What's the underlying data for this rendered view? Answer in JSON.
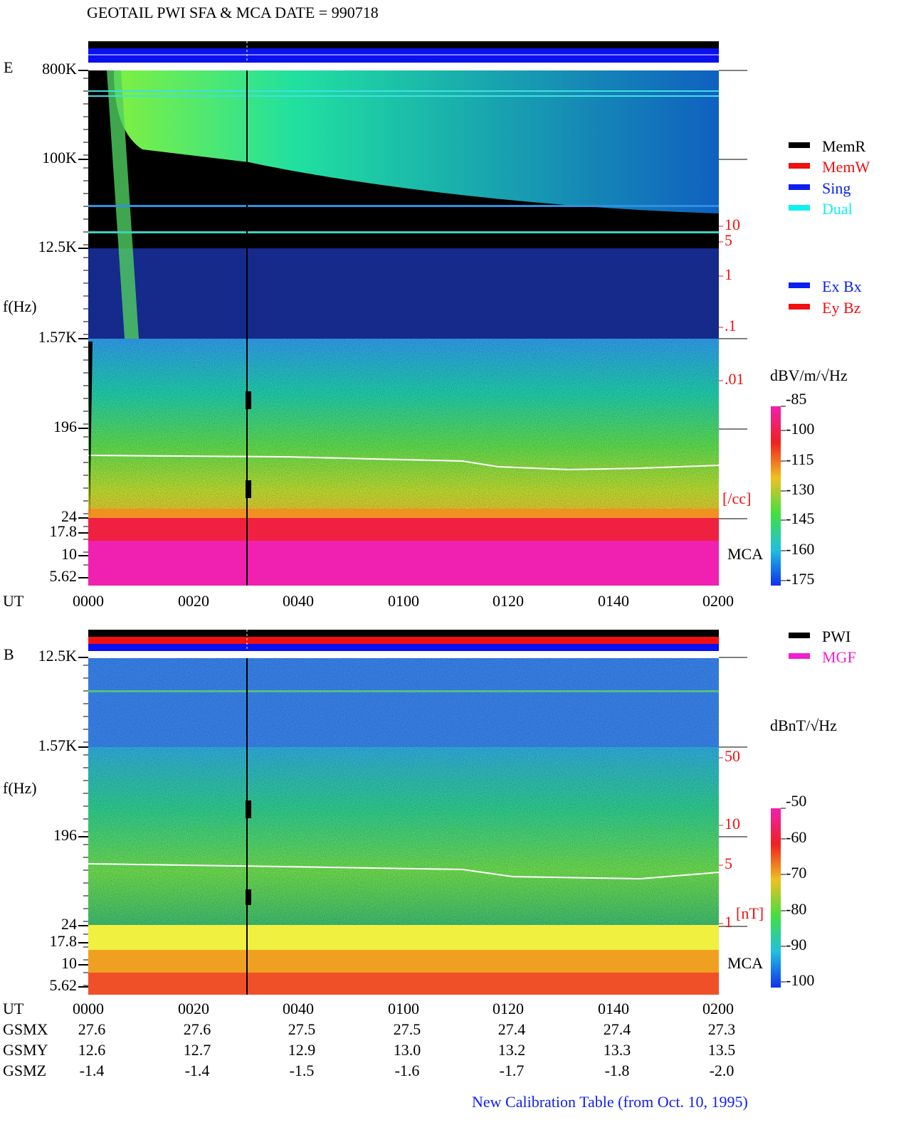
{
  "header": {
    "title": "GEOTAIL   PWI SFA & MCA   DATE = 990718"
  },
  "panel_e": {
    "label": "E",
    "y_axis_label": "f(Hz)",
    "y_ticks": [
      "800K",
      "100K",
      "12.5K",
      "1.57K",
      "196",
      "24",
      "17.8",
      "10",
      "5.62"
    ],
    "x_axis_label": "UT",
    "x_ticks": [
      "0000",
      "0020",
      "0040",
      "0100",
      "0120",
      "0140",
      "0200"
    ],
    "density_ticks": [
      "10",
      "5",
      "1",
      ".1",
      ".01"
    ],
    "density_unit": "[/cc]",
    "mca_label": "MCA",
    "status_legend": [
      "MemR",
      "MemW",
      "Sing",
      "Dual"
    ],
    "component_legend": [
      "Ex Bx",
      "Ey Bz"
    ],
    "colorbar_unit": "dBV/m/√Hz",
    "colorbar_ticks": [
      "-85",
      "-100",
      "-115",
      "-130",
      "-145",
      "-160",
      "-175"
    ]
  },
  "panel_b": {
    "label": "B",
    "y_axis_label": "f(Hz)",
    "y_ticks": [
      "12.5K",
      "1.57K",
      "196",
      "24",
      "17.8",
      "10",
      "5.62"
    ],
    "x_axis_label": "UT",
    "x_ticks": [
      "0000",
      "0020",
      "0040",
      "0100",
      "0120",
      "0140",
      "0200"
    ],
    "field_ticks": [
      "50",
      "10",
      "5",
      "1"
    ],
    "field_unit": "[nT]",
    "mca_label": "MCA",
    "source_legend": [
      "PWI",
      "MGF"
    ],
    "colorbar_unit": "dBnT/√Hz",
    "colorbar_ticks": [
      "-50",
      "-60",
      "-70",
      "-80",
      "-90",
      "-100"
    ]
  },
  "orbit": {
    "labels": [
      "GSMX",
      "GSMY",
      "GSMZ"
    ],
    "rows": [
      [
        "27.6",
        "27.6",
        "27.5",
        "27.5",
        "27.4",
        "27.4",
        "27.3"
      ],
      [
        "12.6",
        "12.7",
        "12.9",
        "13.0",
        "13.2",
        "13.3",
        "13.5"
      ],
      [
        "-1.4",
        "-1.4",
        "-1.5",
        "-1.6",
        "-1.7",
        "-1.8",
        "-2.0"
      ]
    ]
  },
  "footer": {
    "note": "New Calibration Table (from Oct. 10, 1995)"
  }
}
